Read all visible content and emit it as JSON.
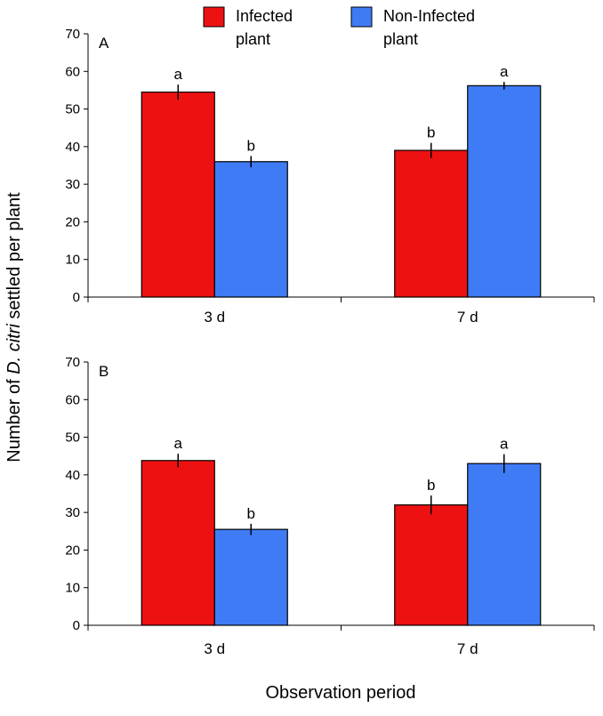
{
  "legend": {
    "items": [
      {
        "line1": "Infected",
        "line2": "plant",
        "color": "#ee1111"
      },
      {
        "line1": "Non-Infected",
        "line2": "plant",
        "color": "#3f7bf5"
      }
    ]
  },
  "axes": {
    "ylabel_pre": "Number of ",
    "ylabel_italic": "D. citri",
    "ylabel_post": " settled per plant",
    "xlabel": "Observation period"
  },
  "chart_data": [
    {
      "type": "bar",
      "panel": "A",
      "categories": [
        "3 d",
        "7 d"
      ],
      "series": [
        {
          "name": "Infected plant",
          "values": [
            54.5,
            39
          ],
          "errors": [
            2,
            2
          ],
          "letters": [
            "a",
            "b"
          ],
          "color": "#ee1111"
        },
        {
          "name": "Non-Infected plant",
          "values": [
            36,
            56.2
          ],
          "errors": [
            1.5,
            1
          ],
          "letters": [
            "b",
            "a"
          ],
          "color": "#3f7bf5"
        }
      ],
      "ylim": [
        0,
        70
      ],
      "yticks": [
        0,
        10,
        20,
        30,
        40,
        50,
        60,
        70
      ],
      "grid": false,
      "legend_position": "top-center"
    },
    {
      "type": "bar",
      "panel": "B",
      "categories": [
        "3 d",
        "7 d"
      ],
      "series": [
        {
          "name": "Infected plant",
          "values": [
            43.8,
            32
          ],
          "errors": [
            1.8,
            2.5
          ],
          "letters": [
            "a",
            "b"
          ],
          "color": "#ee1111"
        },
        {
          "name": "Non-Infected plant",
          "values": [
            25.5,
            43
          ],
          "errors": [
            1.5,
            2.5
          ],
          "letters": [
            "b",
            "a"
          ],
          "color": "#3f7bf5"
        }
      ],
      "ylim": [
        0,
        70
      ],
      "yticks": [
        0,
        10,
        20,
        30,
        40,
        50,
        60,
        70
      ],
      "grid": false,
      "legend_position": "top-center"
    }
  ]
}
